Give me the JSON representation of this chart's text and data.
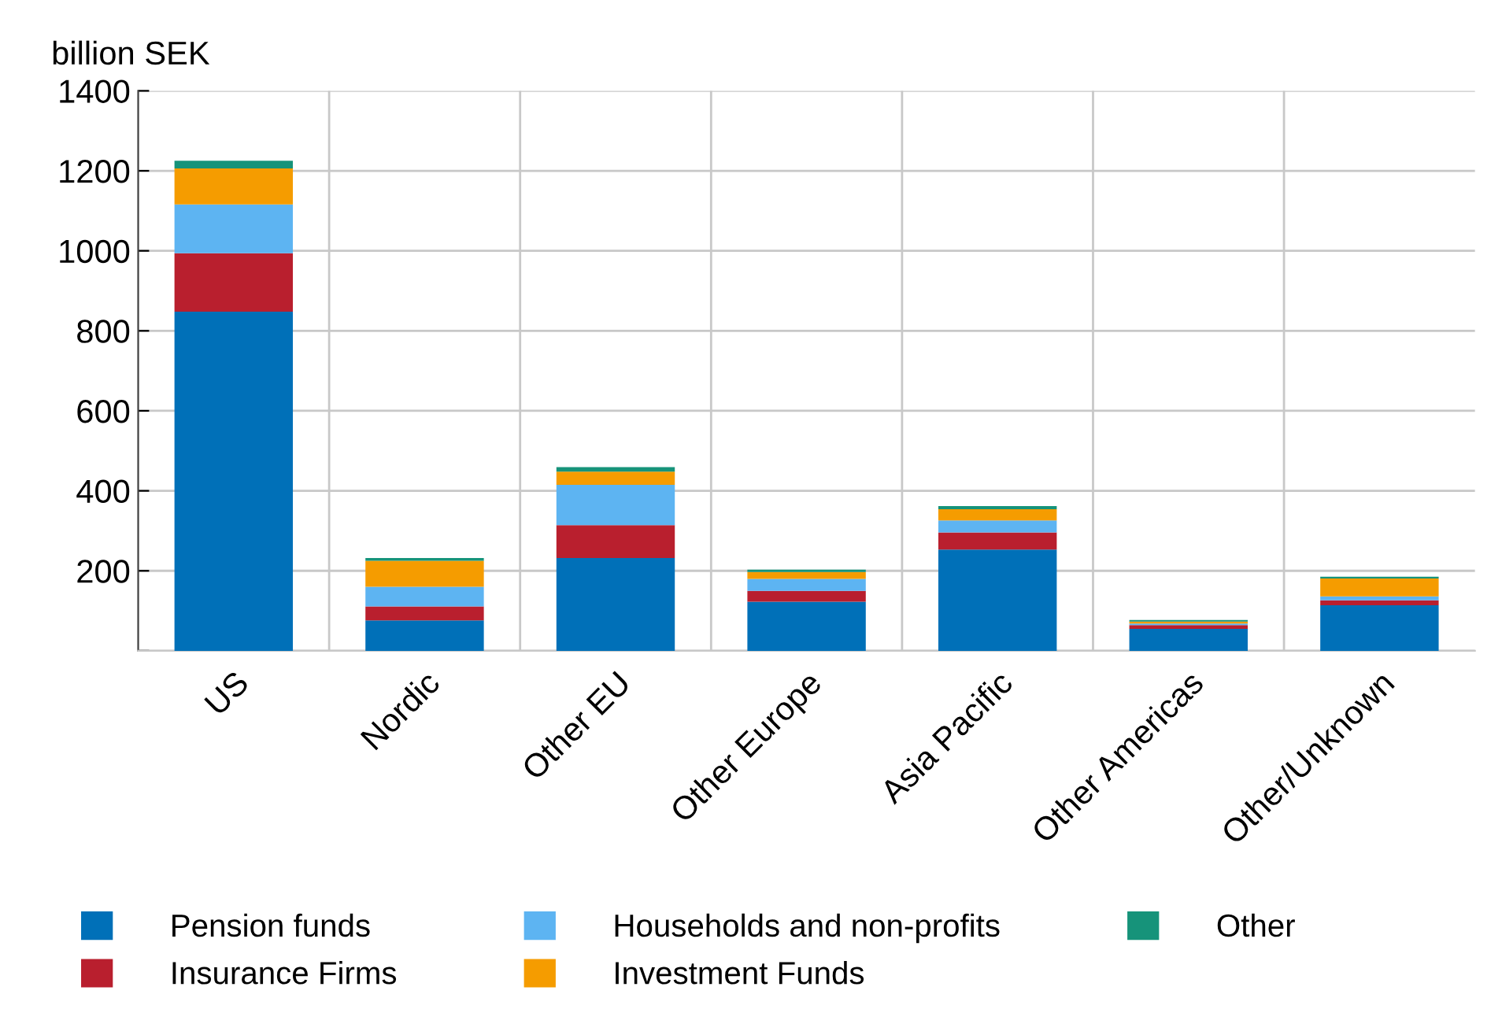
{
  "chart_data": {
    "type": "bar",
    "stacked": true,
    "ylabel": "billion SEK",
    "categories": [
      "US",
      "Nordic",
      "Other EU",
      "Other Europe",
      "Asia Pacific",
      "Other Americas",
      "Other/Unknown"
    ],
    "series": [
      {
        "name": "Pension funds",
        "color": "#0070b8",
        "values": [
          848,
          76,
          232,
          123,
          253,
          55,
          114
        ]
      },
      {
        "name": "Insurance Firms",
        "color": "#b91f2e",
        "values": [
          146,
          35,
          82,
          27,
          43,
          9,
          12
        ]
      },
      {
        "name": "Households and non-profits",
        "color": "#5db4f2",
        "values": [
          122,
          49,
          101,
          30,
          30,
          4,
          10
        ]
      },
      {
        "name": "Investment Funds",
        "color": "#f59c00",
        "values": [
          90,
          65,
          33,
          17,
          28,
          5,
          45
        ]
      },
      {
        "name": "Other",
        "color": "#16937a",
        "values": [
          19,
          7,
          11,
          6,
          8,
          4,
          4
        ]
      }
    ],
    "ylim": [
      0,
      1400
    ],
    "yticks": [
      {
        "value": 0,
        "label": null
      },
      200,
      400,
      600,
      800,
      1000,
      1200,
      1400
    ],
    "grid": true,
    "legend": "bottom"
  }
}
